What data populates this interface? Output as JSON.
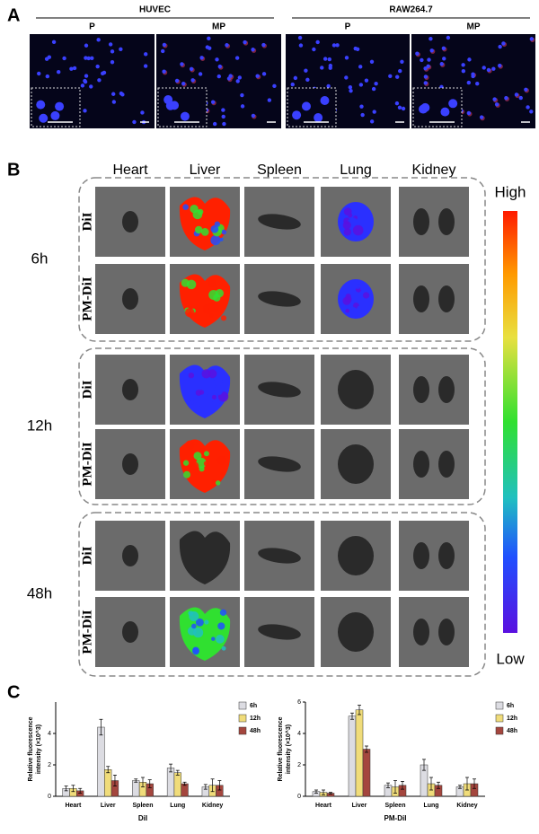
{
  "panel_a": {
    "label": "A",
    "groups": [
      {
        "name": "HUVEC",
        "images": [
          "P",
          "MP"
        ]
      },
      {
        "name": "RAW264.7",
        "images": [
          "P",
          "MP"
        ]
      }
    ]
  },
  "panel_b": {
    "label": "B",
    "organs": [
      "Heart",
      "Liver",
      "Spleen",
      "Lung",
      "Kidney"
    ],
    "timepoints": [
      {
        "label": "6h",
        "rows": [
          "DiI",
          "PM-DiI"
        ]
      },
      {
        "label": "12h",
        "rows": [
          "DiI",
          "PM-DiI"
        ]
      },
      {
        "label": "48h",
        "rows": [
          "DiI",
          "PM-DiI"
        ]
      }
    ],
    "colorbar": {
      "high": "High",
      "low": "Low"
    }
  },
  "panel_c": {
    "label": "C"
  },
  "chart_data": [
    {
      "type": "bar",
      "ylabel": [
        "Relative fluorescence",
        "intensity (×10^3)"
      ],
      "xlabel": "DiI",
      "categories": [
        "Heart",
        "Liver",
        "Spleen",
        "Lung",
        "Kidney"
      ],
      "series": [
        {
          "name": "6h",
          "color": "#dcdce2",
          "values": [
            0.5,
            4.4,
            1.0,
            1.8,
            0.6
          ],
          "errors": [
            0.15,
            0.5,
            0.1,
            0.25,
            0.15
          ]
        },
        {
          "name": "12h",
          "color": "#f0dc7a",
          "values": [
            0.5,
            1.7,
            0.9,
            1.5,
            0.7
          ],
          "errors": [
            0.2,
            0.2,
            0.3,
            0.15,
            0.4
          ]
        },
        {
          "name": "48h",
          "color": "#a4463e",
          "values": [
            0.35,
            1.0,
            0.8,
            0.8,
            0.7
          ],
          "errors": [
            0.15,
            0.35,
            0.25,
            0.1,
            0.3
          ]
        }
      ],
      "ylim": [
        0,
        6
      ],
      "yticks": [
        0,
        2,
        4
      ],
      "legend": "upper right"
    },
    {
      "type": "bar",
      "ylabel": [
        "Relative fluorescence",
        "intensity (×10^3)"
      ],
      "xlabel": "PM-DiI",
      "categories": [
        "Heart",
        "Liver",
        "Spleen",
        "Lung",
        "Kidney"
      ],
      "series": [
        {
          "name": "6h",
          "color": "#dcdce2",
          "values": [
            0.3,
            5.1,
            0.7,
            2.0,
            0.6
          ],
          "errors": [
            0.1,
            0.2,
            0.15,
            0.35,
            0.1
          ]
        },
        {
          "name": "12h",
          "color": "#f0dc7a",
          "values": [
            0.25,
            5.5,
            0.6,
            0.8,
            0.8
          ],
          "errors": [
            0.15,
            0.3,
            0.4,
            0.4,
            0.4
          ]
        },
        {
          "name": "48h",
          "color": "#a4463e",
          "values": [
            0.2,
            3.0,
            0.7,
            0.7,
            0.8
          ],
          "errors": [
            0.05,
            0.2,
            0.25,
            0.2,
            0.3
          ]
        }
      ],
      "ylim": [
        0,
        6
      ],
      "yticks": [
        0,
        2,
        4,
        6
      ],
      "legend": "upper right"
    }
  ]
}
